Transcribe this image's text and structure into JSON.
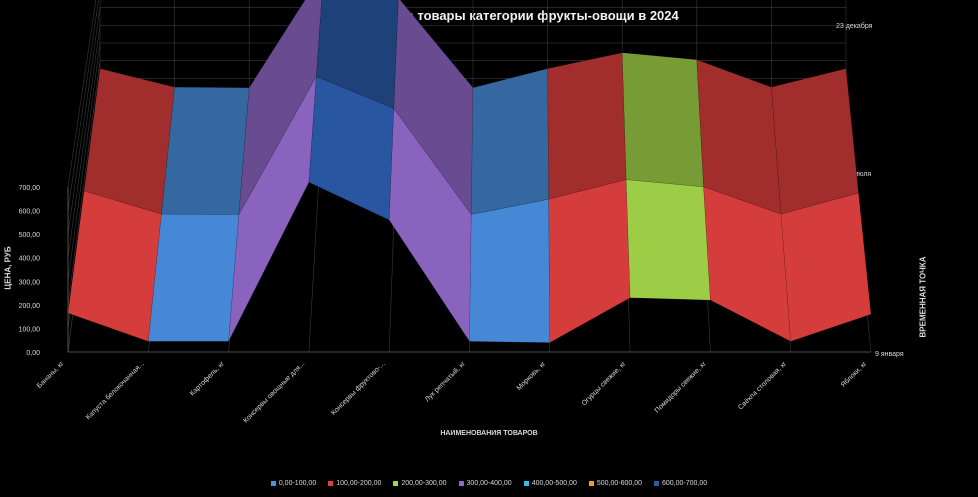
{
  "chart_data": {
    "type": "surface",
    "title": "изменение цен на товары категории  фрукты-овощи в 2024",
    "ylabel": "ЦЕНА, РУБ",
    "xlabel": "НАИМЕНОВАНИЯ ТОВАРОВ",
    "zlabel": "ВРЕМЕННАЯ ТОЧКА",
    "ylim": [
      0,
      700
    ],
    "yticks": [
      "0,00",
      "100,00",
      "200,00",
      "300,00",
      "400,00",
      "500,00",
      "600,00",
      "700,00"
    ],
    "categories": [
      "Бананы, кг",
      "Капуста белокочанная...",
      "Картофель, кг",
      "Консервы овощные для...",
      "Консервы фруктово-...",
      "Лук репчатый, кг",
      "Морковь, кг",
      "Огурцы свежие, кг",
      "Помидоры свежие, кг",
      "Свёкла столовая, кг",
      "Яблоки, кг"
    ],
    "series": [
      {
        "name": "9 января",
        "values": [
          165,
          45,
          45,
          720,
          560,
          45,
          40,
          230,
          220,
          45,
          160
        ]
      },
      {
        "name": "1 июля",
        "values": [
          160,
          48,
          46,
          715,
          560,
          46,
          120,
          215,
          180,
          48,
          150
        ]
      },
      {
        "name": "23 декабря",
        "values": [
          155,
          50,
          47,
          710,
          555,
          47,
          155,
          245,
          205,
          50,
          155
        ]
      }
    ],
    "bands": [
      {
        "label": "0,00-100,00",
        "color": "#4a8fe0"
      },
      {
        "label": "100,00-200,00",
        "color": "#e0403f"
      },
      {
        "label": "200,00-300,00",
        "color": "#a5d84a"
      },
      {
        "label": "300,00-400,00",
        "color": "#9068c8"
      },
      {
        "label": "400,00-500,00",
        "color": "#38c0e0"
      },
      {
        "label": "500,00-600,00",
        "color": "#ff9a2a"
      },
      {
        "label": "600,00-700,00",
        "color": "#2a5aa8"
      }
    ],
    "legend_position": "bottom",
    "grid": true
  }
}
